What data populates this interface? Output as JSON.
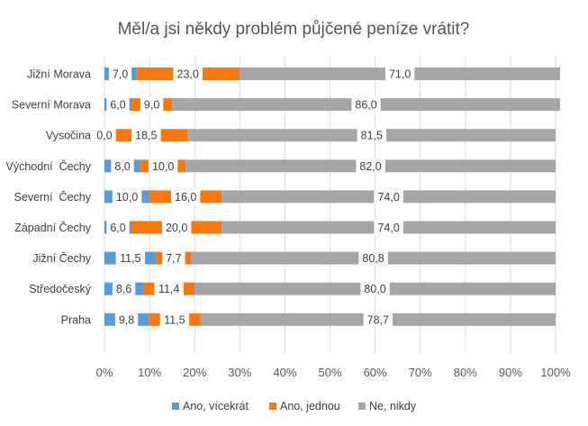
{
  "chart_data": {
    "type": "bar",
    "stacked": true,
    "orientation": "horizontal",
    "title": "Měl/a jsi někdy problém půjčené peníze vrátit?",
    "categories": [
      "Jižní Morava",
      "Severní Morava",
      "Vysočina",
      "Východní  Čechy",
      "Severní  Čechy",
      "Západní Čechy",
      "Jižní Čechy",
      "Středočeský",
      "Praha"
    ],
    "series": [
      {
        "name": "Ano, vícekrát",
        "color": "#5b9bd5",
        "values": [
          7.0,
          6.0,
          0.0,
          8.0,
          10.0,
          6.0,
          11.5,
          8.6,
          9.8
        ],
        "labels": [
          "7,0",
          "6,0",
          "0,0",
          "8,0",
          "10,0",
          "6,0",
          "11,5",
          "8,6",
          "9,8"
        ]
      },
      {
        "name": "Ano, jednou",
        "color": "#f5790f",
        "values": [
          23.0,
          9.0,
          18.5,
          10.0,
          16.0,
          20.0,
          7.7,
          11.4,
          11.5
        ],
        "labels": [
          "23,0",
          "9,0",
          "18,5",
          "10,0",
          "16,0",
          "20,0",
          "7,7",
          "11,4",
          "11,5"
        ]
      },
      {
        "name": "Ne, nikdy",
        "color": "#a5a5a5",
        "values": [
          71.0,
          86.0,
          81.5,
          82.0,
          74.0,
          74.0,
          80.8,
          80.0,
          78.7
        ],
        "labels": [
          "71,0",
          "86,0",
          "81,5",
          "82,0",
          "74,0",
          "74,0",
          "80,8",
          "80,0",
          "78,7"
        ]
      }
    ],
    "xaxis": {
      "min": 0,
      "max": 100,
      "ticks": [
        0,
        10,
        20,
        30,
        40,
        50,
        60,
        70,
        80,
        90,
        100
      ],
      "tick_labels": [
        "0%",
        "10%",
        "20%",
        "30%",
        "40%",
        "50%",
        "60%",
        "70%",
        "80%",
        "90%",
        "100%"
      ]
    },
    "grid": true,
    "legend_position": "bottom"
  }
}
